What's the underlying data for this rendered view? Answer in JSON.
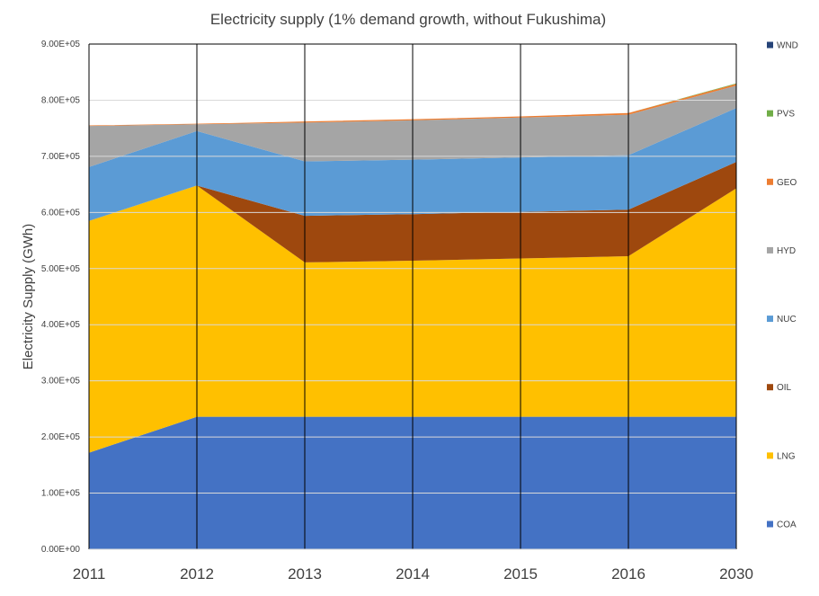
{
  "chart_data": {
    "type": "area",
    "stacked": true,
    "title": "Electricity supply (1% demand growth, without Fukushima)",
    "xlabel": "",
    "ylabel": "Electricity Supply (GWh)",
    "x": [
      "2011",
      "2012",
      "2013",
      "2014",
      "2015",
      "2016",
      "2030"
    ],
    "ylim": [
      0,
      900000
    ],
    "yticks": [
      "0.00E+00",
      "1.00E+05",
      "2.00E+05",
      "3.00E+05",
      "4.00E+05",
      "5.00E+05",
      "6.00E+05",
      "7.00E+05",
      "8.00E+05",
      "9.00E+05"
    ],
    "grid": true,
    "legend_position": "right",
    "series": [
      {
        "name": "COA",
        "color": "#4472C4",
        "values": [
          172000,
          236000,
          236000,
          236000,
          236000,
          236000,
          236000
        ]
      },
      {
        "name": "LNG",
        "color": "#FFC000",
        "values": [
          413000,
          412000,
          275000,
          278000,
          282000,
          286000,
          407000
        ]
      },
      {
        "name": "OIL",
        "color": "#9E480E",
        "values": [
          0,
          0,
          83000,
          83000,
          83000,
          83000,
          47000
        ]
      },
      {
        "name": "NUC",
        "color": "#5B9BD5",
        "values": [
          96000,
          97000,
          97000,
          97000,
          97000,
          97000,
          96000
        ]
      },
      {
        "name": "HYD",
        "color": "#A5A5A5",
        "values": [
          73000,
          12000,
          69000,
          70000,
          71000,
          72000,
          40000
        ]
      },
      {
        "name": "GEO",
        "color": "#ED7D31",
        "values": [
          1000,
          1000,
          2000,
          2000,
          2000,
          3000,
          3000
        ]
      },
      {
        "name": "PVS",
        "color": "#70AD47",
        "values": [
          0,
          0,
          0,
          0,
          0,
          0,
          1000
        ]
      },
      {
        "name": "WND",
        "color": "#264478",
        "values": [
          0,
          0,
          0,
          0,
          0,
          0,
          0
        ]
      }
    ]
  }
}
